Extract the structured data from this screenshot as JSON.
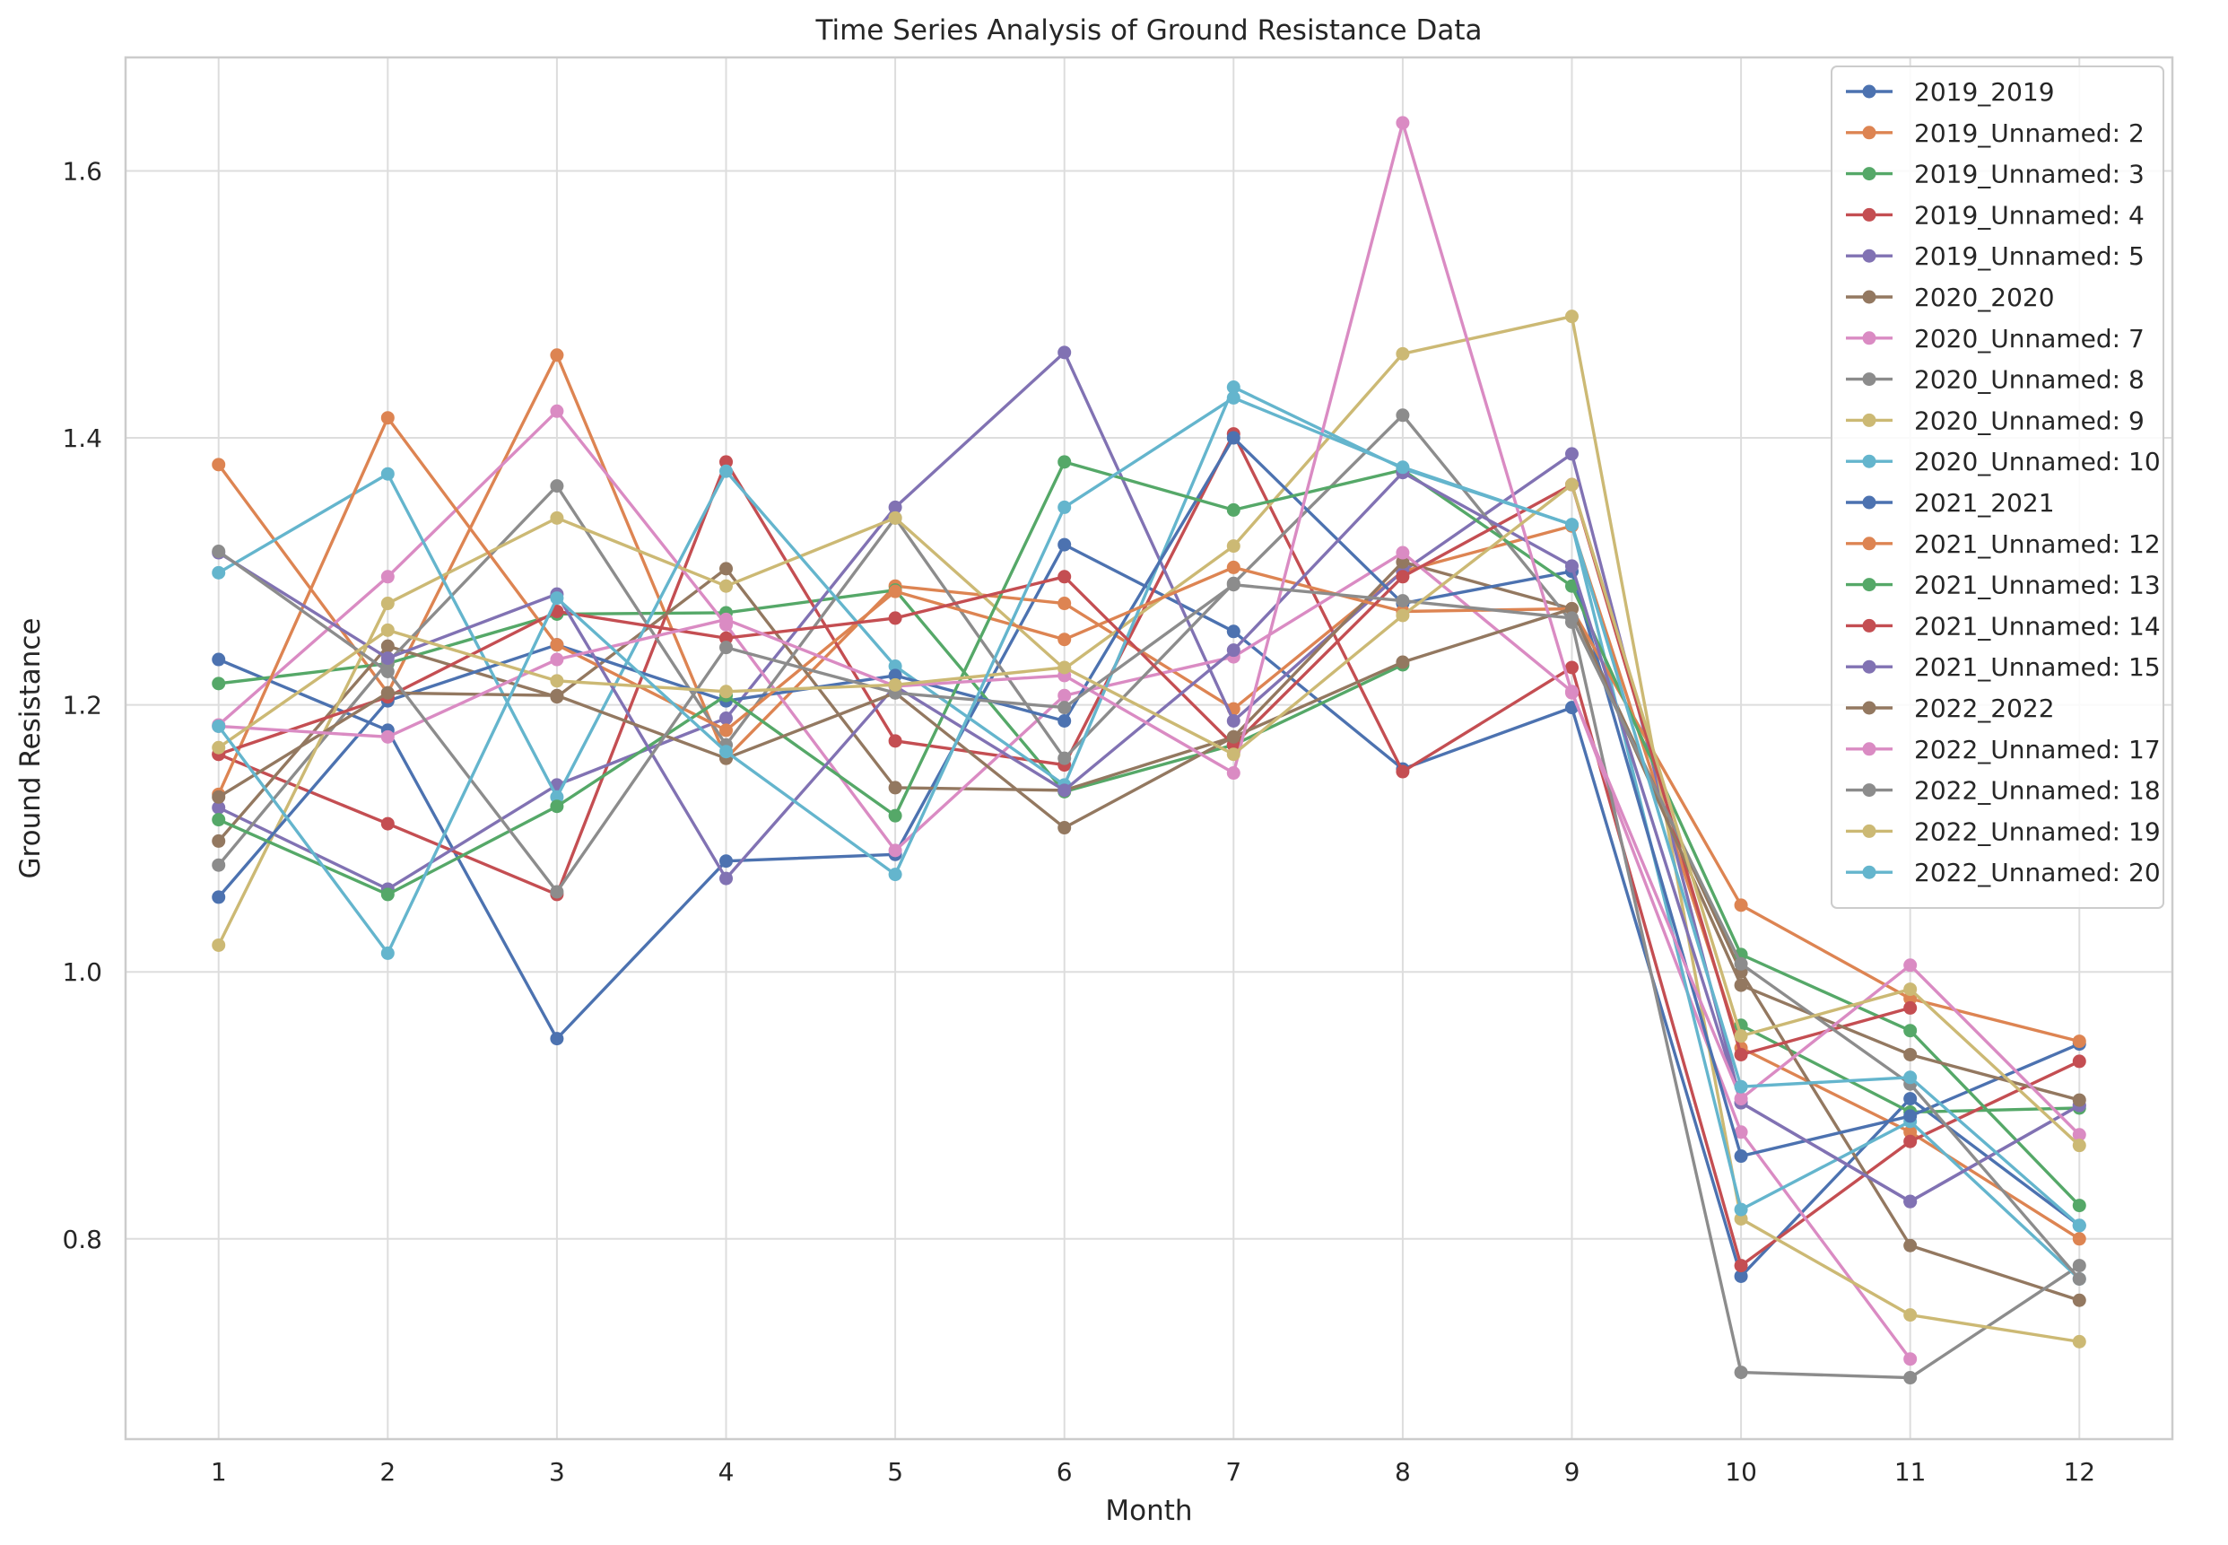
{
  "chart_data": {
    "type": "line",
    "title": "Time Series Analysis of Ground Resistance Data",
    "xlabel": "Month",
    "ylabel": "Ground Resistance",
    "x": [
      1,
      2,
      3,
      4,
      5,
      6,
      7,
      8,
      9,
      10,
      11,
      12
    ],
    "xlim": [
      0.45,
      12.55
    ],
    "ylim": [
      0.65,
      1.685
    ],
    "yticks": [
      0.8,
      1.0,
      1.2,
      1.4,
      1.6
    ],
    "ytick_labels": [
      "0.8",
      "1.0",
      "1.2",
      "1.4",
      "1.6"
    ],
    "xtick_labels": [
      "1",
      "2",
      "3",
      "4",
      "5",
      "6",
      "7",
      "8",
      "9",
      "10",
      "11",
      "12"
    ],
    "grid": true,
    "legend_position": "top-right",
    "series": [
      {
        "name": "2019_2019",
        "color": "#4c72b0",
        "values": [
          1.234,
          1.181,
          0.95,
          1.083,
          1.088,
          1.32,
          1.255,
          1.152,
          1.198,
          0.772,
          0.905,
          0.81
        ]
      },
      {
        "name": "2019_Unnamed: 2",
        "color": "#dd8452",
        "values": [
          1.38,
          1.209,
          1.462,
          1.16,
          1.289,
          1.276,
          1.197,
          1.3,
          1.334,
          0.943,
          0.88,
          0.8
        ]
      },
      {
        "name": "2019_Unnamed: 3",
        "color": "#55a868",
        "values": [
          1.216,
          1.231,
          1.268,
          1.269,
          1.286,
          1.135,
          1.17,
          1.23,
          null,
          0.96,
          0.895,
          0.898
        ]
      },
      {
        "name": "2019_Unnamed: 4",
        "color": "#c44e52",
        "values": [
          1.163,
          1.111,
          1.058,
          1.382,
          1.173,
          1.155,
          1.403,
          1.15,
          1.228,
          0.78,
          0.873,
          0.933
        ]
      },
      {
        "name": "2019_Unnamed: 5",
        "color": "#8172b3",
        "values": [
          1.123,
          1.062,
          1.14,
          1.19,
          1.348,
          1.464,
          1.188,
          1.3,
          1.388,
          0.902,
          0.828,
          0.9
        ]
      },
      {
        "name": "2020_2020",
        "color": "#937860",
        "values": [
          1.098,
          1.244,
          1.206,
          1.302,
          1.138,
          1.136,
          1.176,
          1.307,
          1.272,
          1.0,
          0.795,
          0.754
        ]
      },
      {
        "name": "2020_Unnamed: 7",
        "color": "#da8bc3",
        "values": [
          1.185,
          1.296,
          1.42,
          1.26,
          1.091,
          1.207,
          1.236,
          1.314,
          1.21,
          0.88,
          0.71,
          null
        ]
      },
      {
        "name": "2020_Unnamed: 8",
        "color": "#8c8c8c",
        "values": [
          1.08,
          1.232,
          1.364,
          1.17,
          1.34,
          1.16,
          1.291,
          1.417,
          1.262,
          0.7,
          0.696,
          0.78
        ]
      },
      {
        "name": "2020_Unnamed: 9",
        "color": "#ccb974",
        "values": [
          1.02,
          1.276,
          1.34,
          1.289,
          1.34,
          1.227,
          1.319,
          1.463,
          1.491,
          0.815,
          0.743,
          0.723
        ]
      },
      {
        "name": "2020_Unnamed: 10",
        "color": "#64b5cd",
        "values": [
          1.299,
          1.373,
          1.131,
          1.375,
          1.229,
          1.14,
          1.438,
          1.377,
          1.335,
          0.822,
          0.888,
          0.77
        ]
      },
      {
        "name": "2021_2021",
        "color": "#4c72b0",
        "values": [
          1.056,
          1.203,
          1.245,
          1.203,
          1.222,
          1.188,
          1.4,
          1.276,
          1.3,
          0.862,
          0.892,
          0.946
        ]
      },
      {
        "name": "2021_Unnamed: 12",
        "color": "#dd8452",
        "values": [
          1.133,
          1.415,
          1.245,
          1.181,
          1.285,
          1.249,
          1.303,
          1.27,
          1.272,
          1.05,
          0.98,
          0.948
        ]
      },
      {
        "name": "2021_Unnamed: 13",
        "color": "#55a868",
        "values": [
          1.114,
          1.058,
          1.124,
          1.207,
          1.117,
          1.382,
          1.346,
          1.376,
          1.289,
          1.013,
          0.956,
          0.825
        ]
      },
      {
        "name": "2021_Unnamed: 14",
        "color": "#c44e52",
        "values": [
          1.163,
          1.206,
          1.27,
          1.25,
          1.265,
          1.296,
          1.17,
          1.296,
          1.365,
          0.938,
          0.973,
          null
        ]
      },
      {
        "name": "2021_Unnamed: 15",
        "color": "#8172b3",
        "values": [
          1.314,
          1.235,
          1.283,
          1.07,
          1.214,
          1.136,
          1.241,
          1.374,
          1.304,
          0.902,
          0.828,
          0.9
        ]
      },
      {
        "name": "2022_2022",
        "color": "#937860",
        "values": [
          1.131,
          1.209,
          1.207,
          1.16,
          1.209,
          1.108,
          1.176,
          1.232,
          1.272,
          0.99,
          0.938,
          0.904
        ]
      },
      {
        "name": "2022_Unnamed: 17",
        "color": "#da8bc3",
        "values": [
          1.184,
          1.176,
          1.234,
          1.264,
          1.214,
          1.222,
          1.149,
          1.636,
          1.209,
          0.905,
          1.005,
          0.878
        ]
      },
      {
        "name": "2022_Unnamed: 18",
        "color": "#8c8c8c",
        "values": [
          1.315,
          1.225,
          1.06,
          1.243,
          1.209,
          1.198,
          1.29,
          1.278,
          1.265,
          1.006,
          0.916,
          0.77
        ]
      },
      {
        "name": "2022_Unnamed: 19",
        "color": "#ccb974",
        "values": [
          1.168,
          1.256,
          1.218,
          1.21,
          1.215,
          1.228,
          1.163,
          1.267,
          1.365,
          0.952,
          0.987,
          0.87
        ]
      },
      {
        "name": "2022_Unnamed: 20",
        "color": "#64b5cd",
        "values": [
          1.184,
          1.014,
          1.28,
          1.165,
          1.073,
          1.348,
          1.43,
          1.378,
          1.335,
          0.914,
          0.921,
          0.81
        ]
      }
    ]
  }
}
